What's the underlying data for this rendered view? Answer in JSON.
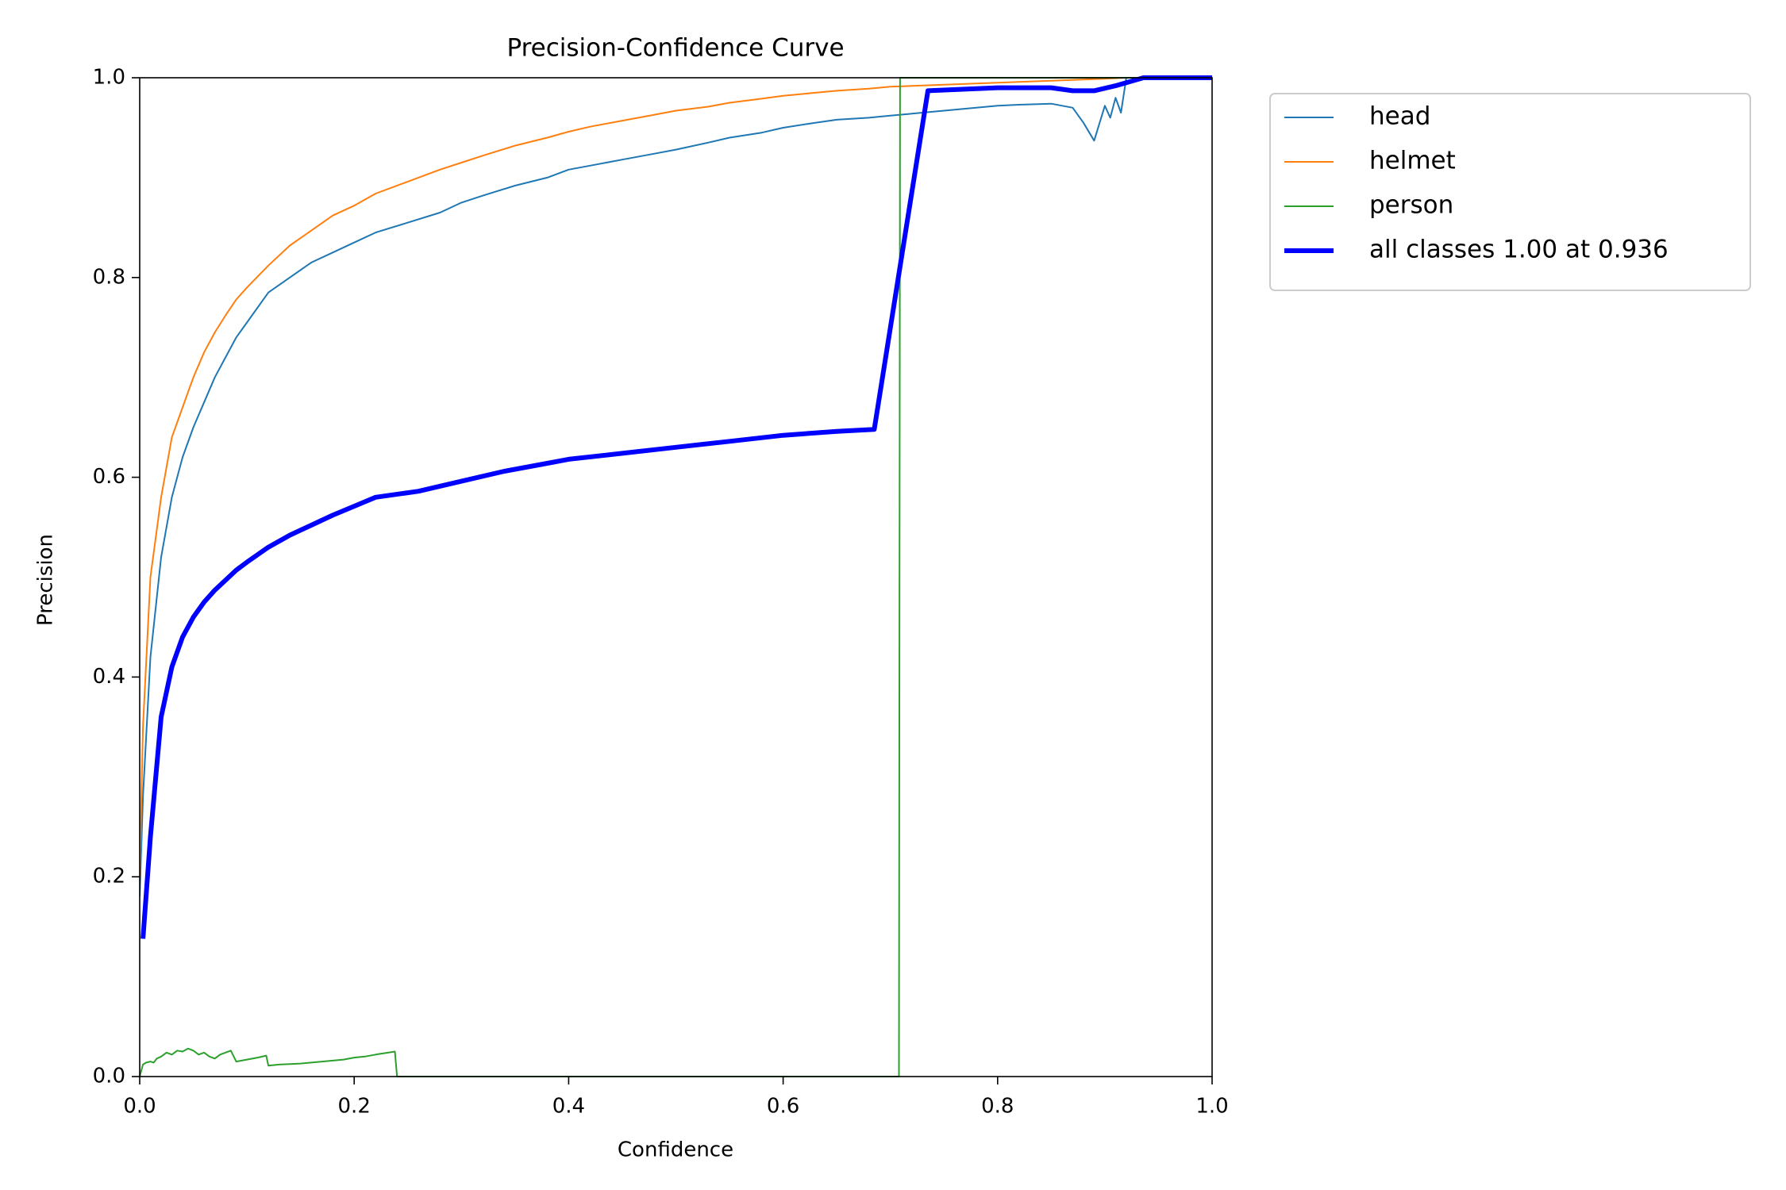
{
  "chart_data": {
    "type": "line",
    "title": "Precision-Confidence Curve",
    "xlabel": "Confidence",
    "ylabel": "Precision",
    "xlim": [
      0,
      1
    ],
    "ylim": [
      0,
      1
    ],
    "xticks": [
      0.0,
      0.2,
      0.4,
      0.6,
      0.8,
      1.0
    ],
    "yticks": [
      0.0,
      0.2,
      0.4,
      0.6,
      0.8,
      1.0
    ],
    "xtick_labels": [
      "0.0",
      "0.2",
      "0.4",
      "0.6",
      "0.8",
      "1.0"
    ],
    "ytick_labels": [
      "0.0",
      "0.2",
      "0.4",
      "0.6",
      "0.8",
      "1.0"
    ],
    "grid": false,
    "legend_placement": "outside-top-right",
    "series": [
      {
        "name": "head",
        "color": "#1f77b4",
        "width": 2,
        "x": [
          0.0,
          0.003,
          0.01,
          0.02,
          0.03,
          0.04,
          0.05,
          0.06,
          0.07,
          0.08,
          0.09,
          0.1,
          0.12,
          0.14,
          0.16,
          0.18,
          0.2,
          0.22,
          0.25,
          0.28,
          0.3,
          0.32,
          0.35,
          0.38,
          0.4,
          0.42,
          0.45,
          0.48,
          0.5,
          0.53,
          0.55,
          0.58,
          0.6,
          0.63,
          0.65,
          0.68,
          0.7,
          0.72,
          0.75,
          0.78,
          0.8,
          0.82,
          0.85,
          0.87,
          0.88,
          0.89,
          0.9,
          0.905,
          0.91,
          0.915,
          0.92,
          0.95,
          1.0
        ],
        "y": [
          0.18,
          0.28,
          0.42,
          0.52,
          0.58,
          0.62,
          0.65,
          0.675,
          0.7,
          0.72,
          0.74,
          0.755,
          0.785,
          0.8,
          0.815,
          0.825,
          0.835,
          0.845,
          0.855,
          0.865,
          0.875,
          0.882,
          0.892,
          0.9,
          0.908,
          0.912,
          0.918,
          0.924,
          0.928,
          0.935,
          0.94,
          0.945,
          0.95,
          0.955,
          0.958,
          0.96,
          0.962,
          0.964,
          0.967,
          0.97,
          0.972,
          0.973,
          0.974,
          0.97,
          0.955,
          0.937,
          0.972,
          0.96,
          0.98,
          0.965,
          1.0,
          1.0,
          1.0
        ]
      },
      {
        "name": "helmet",
        "color": "#ff7f0e",
        "width": 2,
        "x": [
          0.0,
          0.003,
          0.01,
          0.02,
          0.03,
          0.04,
          0.05,
          0.06,
          0.07,
          0.08,
          0.09,
          0.1,
          0.12,
          0.14,
          0.16,
          0.18,
          0.2,
          0.22,
          0.25,
          0.28,
          0.3,
          0.32,
          0.35,
          0.38,
          0.4,
          0.42,
          0.45,
          0.48,
          0.5,
          0.53,
          0.55,
          0.58,
          0.6,
          0.63,
          0.65,
          0.68,
          0.7,
          0.75,
          0.8,
          0.85,
          0.9,
          0.92,
          1.0
        ],
        "y": [
          0.2,
          0.35,
          0.5,
          0.58,
          0.64,
          0.67,
          0.7,
          0.725,
          0.745,
          0.762,
          0.778,
          0.79,
          0.812,
          0.832,
          0.847,
          0.862,
          0.872,
          0.884,
          0.896,
          0.908,
          0.915,
          0.922,
          0.932,
          0.94,
          0.946,
          0.951,
          0.957,
          0.963,
          0.967,
          0.971,
          0.975,
          0.979,
          0.982,
          0.985,
          0.987,
          0.989,
          0.991,
          0.993,
          0.995,
          0.997,
          0.999,
          1.0,
          1.0
        ]
      },
      {
        "name": "person",
        "color": "#2ca02c",
        "width": 2,
        "x": [
          0.0,
          0.003,
          0.006,
          0.01,
          0.013,
          0.016,
          0.02,
          0.025,
          0.03,
          0.035,
          0.04,
          0.045,
          0.05,
          0.055,
          0.06,
          0.065,
          0.07,
          0.075,
          0.08,
          0.085,
          0.09,
          0.1,
          0.11,
          0.118,
          0.12,
          0.13,
          0.15,
          0.17,
          0.19,
          0.2,
          0.21,
          0.22,
          0.238,
          0.24,
          0.3,
          0.4,
          0.5,
          0.6,
          0.7,
          0.708,
          0.709,
          0.71,
          0.75,
          0.8,
          0.9,
          1.0
        ],
        "y": [
          0.0,
          0.012,
          0.014,
          0.015,
          0.014,
          0.018,
          0.02,
          0.024,
          0.022,
          0.026,
          0.025,
          0.028,
          0.026,
          0.022,
          0.024,
          0.02,
          0.018,
          0.022,
          0.024,
          0.026,
          0.015,
          0.017,
          0.019,
          0.021,
          0.011,
          0.012,
          0.013,
          0.015,
          0.017,
          0.019,
          0.02,
          0.022,
          0.025,
          0.0,
          0.0,
          0.0,
          0.0,
          0.0,
          0.0,
          0.0,
          1.0,
          1.0,
          1.0,
          1.0,
          1.0,
          1.0
        ]
      },
      {
        "name": "all classes 1.00 at 0.936",
        "color": "#0000ff",
        "width": 6,
        "x": [
          0.003,
          0.01,
          0.02,
          0.03,
          0.04,
          0.05,
          0.06,
          0.07,
          0.08,
          0.09,
          0.1,
          0.12,
          0.14,
          0.16,
          0.18,
          0.2,
          0.22,
          0.26,
          0.3,
          0.34,
          0.38,
          0.4,
          0.45,
          0.5,
          0.55,
          0.6,
          0.65,
          0.685,
          0.735,
          0.8,
          0.85,
          0.87,
          0.89,
          0.91,
          0.936,
          1.0
        ],
        "y": [
          0.138,
          0.24,
          0.36,
          0.41,
          0.44,
          0.46,
          0.475,
          0.487,
          0.497,
          0.507,
          0.515,
          0.53,
          0.542,
          0.552,
          0.562,
          0.571,
          0.58,
          0.586,
          0.596,
          0.606,
          0.614,
          0.618,
          0.624,
          0.63,
          0.636,
          0.642,
          0.646,
          0.648,
          0.987,
          0.99,
          0.99,
          0.987,
          0.987,
          0.992,
          1.0,
          1.0
        ]
      }
    ]
  }
}
